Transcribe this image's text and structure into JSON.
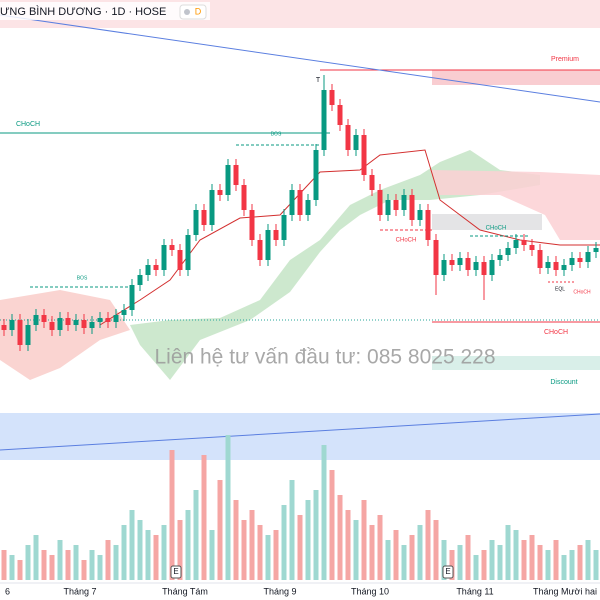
{
  "chart_data": {
    "type": "candlestick",
    "title": "ƯNG BÌNH DƯƠNG · 1D · HOSE",
    "badge": "D",
    "open": [
      85,
      80,
      90,
      65,
      85,
      95,
      88,
      80,
      92,
      85,
      90,
      82,
      88,
      92,
      88,
      95,
      100,
      125,
      135,
      145,
      140,
      165,
      160,
      140,
      175,
      200,
      185,
      220,
      215,
      245,
      225,
      200,
      170,
      150,
      180,
      170,
      195,
      220,
      195,
      210,
      260,
      320,
      305,
      285,
      260,
      275,
      235,
      220,
      195,
      210,
      200,
      215,
      190,
      200,
      170,
      135,
      150,
      145,
      152,
      140,
      148,
      135,
      150,
      155,
      162,
      170,
      165,
      160,
      142,
      148,
      140,
      145,
      152,
      148,
      158
    ],
    "high": [
      91,
      96,
      96,
      91,
      101,
      101,
      94,
      98,
      98,
      96,
      96,
      94,
      98,
      98,
      101,
      106,
      131,
      141,
      151,
      151,
      171,
      171,
      166,
      181,
      206,
      206,
      226,
      226,
      251,
      251,
      231,
      206,
      176,
      186,
      186,
      201,
      226,
      226,
      216,
      266,
      335,
      326,
      311,
      291,
      281,
      281,
      241,
      226,
      216,
      216,
      221,
      221,
      206,
      206,
      176,
      156,
      156,
      158,
      158,
      154,
      154,
      156,
      161,
      168,
      176,
      176,
      171,
      166,
      154,
      154,
      151,
      158,
      158,
      164,
      168
    ],
    "low": [
      74,
      74,
      59,
      59,
      79,
      82,
      74,
      74,
      79,
      79,
      76,
      76,
      82,
      82,
      82,
      89,
      94,
      119,
      129,
      134,
      134,
      154,
      134,
      134,
      169,
      179,
      179,
      209,
      209,
      219,
      194,
      164,
      144,
      144,
      164,
      164,
      189,
      189,
      189,
      204,
      254,
      299,
      279,
      254,
      254,
      229,
      214,
      189,
      189,
      194,
      194,
      184,
      184,
      164,
      115,
      129,
      139,
      139,
      134,
      134,
      110,
      129,
      144,
      149,
      156,
      159,
      154,
      136,
      136,
      134,
      134,
      139,
      142,
      142,
      152
    ],
    "close": [
      80,
      90,
      65,
      85,
      95,
      88,
      80,
      92,
      85,
      90,
      82,
      88,
      92,
      88,
      95,
      100,
      125,
      135,
      145,
      140,
      165,
      160,
      140,
      175,
      200,
      185,
      220,
      215,
      245,
      225,
      200,
      170,
      150,
      180,
      170,
      195,
      220,
      195,
      210,
      260,
      320,
      305,
      285,
      260,
      275,
      235,
      220,
      195,
      210,
      200,
      215,
      190,
      200,
      170,
      135,
      150,
      145,
      152,
      140,
      148,
      135,
      150,
      155,
      162,
      170,
      165,
      160,
      142,
      148,
      140,
      145,
      152,
      148,
      158,
      162
    ],
    "ylim": [
      0,
      410
    ],
    "up_color": "#089981",
    "down_color": "#f23645",
    "volume": {
      "values": [
        30,
        25,
        20,
        35,
        45,
        30,
        25,
        40,
        30,
        35,
        20,
        30,
        25,
        40,
        35,
        55,
        70,
        60,
        50,
        45,
        55,
        130,
        60,
        70,
        90,
        125,
        50,
        100,
        145,
        80,
        60,
        70,
        55,
        45,
        50,
        75,
        100,
        65,
        80,
        90,
        135,
        110,
        85,
        70,
        60,
        80,
        55,
        65,
        40,
        50,
        35,
        45,
        55,
        70,
        60,
        40,
        30,
        35,
        45,
        25,
        30,
        40,
        35,
        55,
        50,
        40,
        45,
        35,
        30,
        40,
        25,
        30,
        35,
        40,
        30
      ],
      "ylim": [
        0,
        170
      ],
      "up_color": "#9fd8d1",
      "down_color": "#f5a6a4"
    },
    "time_labels": [
      "6",
      "Tháng 7",
      "Tháng Tám",
      "Tháng 9",
      "Tháng 10",
      "Tháng 11",
      "Tháng Mười hai"
    ],
    "event_markers": [
      "E",
      "E"
    ],
    "annotations": [
      "Premium",
      "CHoCH",
      "BOS",
      "BOS",
      "CHoCH",
      "CHoCH",
      "CHoCH",
      "EQL",
      "CHoCH",
      "Discount",
      "T"
    ],
    "watermark": "Liên hệ tư vấn đầu tư:  085 8025 228"
  }
}
